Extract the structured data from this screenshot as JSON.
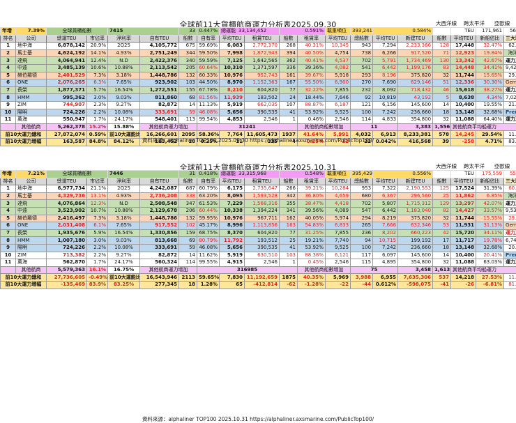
{
  "tables": [
    {
      "title": "全球前11大貨櫃航商運力分析表2025.09.30",
      "summary": {
        "year_label": "年增",
        "year_value": "7.39%",
        "ship_label": "全球貨櫃船數",
        "ship_value": "7415",
        "ship_inc": "33",
        "ship_inc_pct": "0.447%",
        "capacity_label": "總運能",
        "capacity_value": "33,134,452",
        "capacity_pct": "0.591%",
        "tonnage_label": "載重噸位",
        "tonnage_value": "393,241,254",
        "tonnage_pct": "0.584%",
        "teu_label": "TEU"
      },
      "routes": {
        "headers": [
          "大西洋線",
          "跨太平洋",
          "亞歐線"
        ],
        "values": [
          "171,961",
          "565,839",
          "511,552"
        ]
      },
      "headers": [
        "排名",
        "公司",
        "總運TEU",
        "市佔率",
        "淨利率",
        "自有TEU",
        "船數",
        "自有率",
        "平均TEU",
        "租賃TEU",
        "船數",
        "租賃率",
        "平均TEU",
        "總船數",
        "平均TEU",
        "新建TEU",
        "船數",
        "平均TEU",
        "新船佔比"
      ],
      "rows": [
        {
          "cells": [
            "1",
            "地中海",
            "6,878,142",
            "20.9%",
            "2Q25",
            "4,105,772",
            "675",
            "59.69%",
            "6,083",
            "2,772,370",
            "268",
            "40.31%",
            "10,345",
            "943",
            "7,294",
            "2,233,366",
            "128",
            "17,448",
            "32.47%"
          ],
          "bg": "bg-white"
        },
        {
          "cells": [
            "2",
            "馬士基",
            "4,624,192",
            "14.1%",
            "4.93%",
            "2,751,249",
            "344",
            "59.50%",
            "7,998",
            "1,872,943",
            "394",
            "40.50%",
            "4,754",
            "738",
            "6,266",
            "917,520",
            "71",
            "12,923",
            "19.84%"
          ],
          "bg": "bg-orange"
        },
        {
          "cells": [
            "3",
            "達飛",
            "4,064,941",
            "12.4%",
            "N.D",
            "2,422,376",
            "340",
            "59.59%",
            "7,125",
            "1,642,565",
            "362",
            "40.41%",
            "4,537",
            "702",
            "5,791",
            "1,734,469",
            "130",
            "13,342",
            "42.67%"
          ],
          "bg": "bg-green"
        },
        {
          "cells": [
            "4",
            "中遠",
            "3,485,139",
            "10.6%",
            "10.88%",
            "2,113,542",
            "205",
            "60.64%",
            "10,310",
            "1,371,597",
            "336",
            "39.36%",
            "4,082",
            "541",
            "6,442",
            "1,199,176",
            "83",
            "14,448",
            "34.41%"
          ],
          "bg": "bg-green"
        },
        {
          "cells": [
            "5",
            "赫伯羅德",
            "2,401,529",
            "7.3%",
            "3.18%",
            "1,448,786",
            "132",
            "60.33%",
            "10,976",
            "952,743",
            "161",
            "39.67%",
            "5,918",
            "293",
            "8,196",
            "375,820",
            "32",
            "11,744",
            "15.65%"
          ],
          "bg": "bg-orange"
        },
        {
          "cells": [
            "6",
            "ONE",
            "2,076,265",
            "6.3%",
            "7.65%",
            "923,902",
            "103",
            "44.50%",
            "8,970",
            "1,152,363",
            "167",
            "55.50%",
            "6,900",
            "270",
            "7,690",
            "629,146",
            "51",
            "12,336",
            "30.30%"
          ],
          "bg": "bg-blue"
        },
        {
          "cells": [
            "7",
            "長榮",
            "1,877,371",
            "5.7%",
            "16.54%",
            "1,272,551",
            "155",
            "67.78%",
            "8,210",
            "604,820",
            "77",
            "32.22%",
            "7,855",
            "232",
            "8,092",
            "718,432",
            "46",
            "15,618",
            "38.27%"
          ],
          "bg": "bg-green"
        },
        {
          "cells": [
            "8",
            "HMM",
            "995,362",
            "3.0%",
            "9.03%",
            "811,860",
            "68",
            "81.56%",
            "11,939",
            "183,502",
            "24",
            "18.44%",
            "7,646",
            "92",
            "10,819",
            "43,192",
            "5",
            "8,638",
            "4.34%"
          ],
          "bg": "bg-blue"
        },
        {
          "cells": [
            "9",
            "ZIM",
            "744,907",
            "2.3%",
            "9.27%",
            "82,872",
            "14",
            "11.13%",
            "5,919",
            "662,035",
            "107",
            "88.87%",
            "6,187",
            "121",
            "6,156",
            "145,600",
            "14",
            "10,400",
            "19.55%"
          ],
          "bg": "bg-white"
        },
        {
          "cells": [
            "10",
            "陽明",
            "724,226",
            "2.2%",
            "10.08%",
            "333,691",
            "59",
            "46.08%",
            "5,656",
            "390,535",
            "41",
            "53.92%",
            "9,525",
            "100",
            "7,242",
            "236,660",
            "18",
            "13,148",
            "32.68%"
          ],
          "bg": "bg-blue"
        },
        {
          "cells": [
            "11",
            "萬海",
            "550,947",
            "1.7%",
            "24.17%",
            "548,401",
            "113",
            "99.54%",
            "4,853",
            "2,546",
            "1",
            "0.46%",
            "2,546",
            "114",
            "4,833",
            "354,800",
            "32",
            "11,088",
            "64.40%"
          ],
          "bg": "bg-white"
        }
      ],
      "others": {
        "label": "其他航商",
        "teu": "5,262,378",
        "share": "15.2%",
        "margin": "15.88%",
        "own_label": "其他航商運力增加",
        "own_inc": "31241",
        "lease_label": "其他航商船數增加",
        "ship_inc": "11",
        "total_ships": "3,383",
        "avg_teu": "1,556",
        "avg_label": "其他航商平均船運力"
      },
      "top10_total": {
        "label": "前10大運力總和",
        "teu": "27,872,074",
        "share": "0.59%",
        "ratio_label": "前10大運能比",
        "own": "16,266,601",
        "own_ships": "2095",
        "own_rate": "58.36%",
        "own_avg": "7,764",
        "lease": "11,605,473",
        "lease_ships": "1937",
        "lease_rate": "41.64%",
        "lease_avg": "5,991",
        "total_ships": "4,032",
        "avg": "6,913",
        "new": "8,233,381",
        "new_ships": "578",
        "new_avg": "14,245",
        "new_ratio": "29.54%"
      },
      "top10_inc": {
        "label": "前10大運力增幅",
        "teu": "163,587",
        "share": "84.8%",
        "ratio": "84.12%",
        "own": "163,452",
        "own_ships": "18",
        "own_rate": "0.25%",
        "own_avg": "11",
        "lease": "135",
        "lease_ships": "4",
        "lease_rate": "-0.25%",
        "lease_avg": "-12",
        "total_ships": "22",
        "avg": "0.042%",
        "new": "416,568",
        "new_ships": "39",
        "new_avg": "-258",
        "new_ratio": "4.71%"
      },
      "alliances": [
        "三大聯盟佔比",
        "62.30%",
        "海洋聯盟",
        "運力及佔比",
        "9,427,451",
        "29.30%",
        "Gemini 聯盟",
        "運力及佔比",
        "7,025,721",
        "21.40%",
        "Premier 聯盟",
        "運力及佔比",
        "3,816,534",
        "11.60%",
        "83.20%"
      ],
      "source": "資料來源：alphaliner TOP100  2025.09.30   https://alphaliner.axsmarine.com/PublicTop100/"
    },
    {
      "title": "全球前11大貨櫃航商運力分析表2025.10.31",
      "summary": {
        "year_label": "年增",
        "year_value": "7.21%",
        "ship_label": "全球貨櫃船數",
        "ship_value": "7446",
        "ship_inc": "31",
        "ship_inc_pct": "0.418%",
        "capacity_label": "總運能",
        "capacity_value": "33,315,968",
        "capacity_pct": "0.548%",
        "tonnage_label": "載重噸位",
        "tonnage_value": "395,429,214",
        "tonnage_pct": "0.556%",
        "teu_label": "TEU"
      },
      "routes": {
        "headers": [
          "大西洋線",
          "跨太平洋",
          "亞歐線"
        ],
        "values": [
          "175,559",
          "555,383",
          "507,015"
        ]
      },
      "headers": [
        "排名",
        "公司",
        "總運TEU",
        "市佔率",
        "淨利率",
        "自有TEU",
        "船數",
        "自有率",
        "平均TEU",
        "租賃TEU",
        "船數",
        "租賃率",
        "平均TEU",
        "總船數",
        "平均TEU",
        "新建TEU",
        "船數",
        "平均TEU",
        "新船佔比"
      ],
      "rows": [
        {
          "cells": [
            "1",
            "地中海",
            "6,977,734",
            "21.1%",
            "2Q25",
            "4,242,087",
            "687",
            "60.79%",
            "6,175",
            "2,735,647",
            "266",
            "39.21%",
            "10,284",
            "953",
            "7,322",
            "2,190,553",
            "125",
            "17,524",
            "31.39%"
          ],
          "bg": "bg-white"
        },
        {
          "cells": [
            "2",
            "馬士基",
            "4,329,736",
            "13.1%",
            "4.93%",
            "2,736,208",
            "338",
            "63.20%",
            "8,095",
            "1,593,528",
            "342",
            "36.80%",
            "4,659",
            "680",
            "6,367",
            "296,560",
            "25",
            "11,862",
            "6.85%"
          ],
          "bg": "bg-orange"
        },
        {
          "cells": [
            "3",
            "達飛",
            "4,076,864",
            "12.3%",
            "N.D",
            "2,508,548",
            "347",
            "61.53%",
            "7,229",
            "1,568,316",
            "355",
            "38.47%",
            "4,418",
            "702",
            "5,807",
            "1,715,312",
            "129",
            "13,297",
            "42.07%"
          ],
          "bg": "bg-green"
        },
        {
          "cells": [
            "4",
            "中遠",
            "3,523,902",
            "10.7%",
            "10.88%",
            "2,129,678",
            "206",
            "60.44%",
            "10,338",
            "1,394,224",
            "341",
            "39.56%",
            "4,089",
            "547",
            "6,442",
            "1,183,040",
            "82",
            "14,427",
            "33.57%"
          ],
          "bg": "bg-green"
        },
        {
          "cells": [
            "5",
            "赫伯羅德",
            "2,416,497",
            "7.3%",
            "3.18%",
            "1,448,786",
            "132",
            "59.95%",
            "10,976",
            "967,711",
            "162",
            "40.05%",
            "5,974",
            "294",
            "8,219",
            "375,820",
            "32",
            "11,744",
            "15.55%"
          ],
          "bg": "bg-orange"
        },
        {
          "cells": [
            "6",
            "ONE",
            "2,031,408",
            "6.1%",
            "7.65%",
            "917,552",
            "102",
            "45.17%",
            "8,996",
            "1,113,856",
            "163",
            "54.83%",
            "6,833",
            "265",
            "7,666",
            "632,346",
            "53",
            "11,931",
            "31.13%"
          ],
          "bg": "bg-blue"
        },
        {
          "cells": [
            "7",
            "長榮",
            "1,935,676",
            "5.9%",
            "16.54%",
            "1,330,856",
            "159",
            "68.75%",
            "8,370",
            "604,820",
            "77",
            "31.25%",
            "7,855",
            "236",
            "8,202",
            "660,223",
            "42",
            "15,720",
            "34.11%"
          ],
          "bg": "bg-green"
        },
        {
          "cells": [
            "8",
            "HMM",
            "1,007,180",
            "3.0%",
            "9.03%",
            "813,668",
            "69",
            "80.79%",
            "11,792",
            "193,512",
            "25",
            "19.21%",
            "7,740",
            "94",
            "10,715",
            "199,192",
            "17",
            "11,717",
            "19.78%"
          ],
          "bg": "bg-blue"
        },
        {
          "cells": [
            "9",
            "陽明",
            "724,226",
            "2.2%",
            "10.08%",
            "333,691",
            "59",
            "46.08%",
            "5,656",
            "390,535",
            "41",
            "53.92%",
            "9,525",
            "100",
            "7,242",
            "236,660",
            "18",
            "13,148",
            "32.68%"
          ],
          "bg": "bg-blue"
        },
        {
          "cells": [
            "10",
            "ZIM",
            "713,382",
            "2.2%",
            "9.27%",
            "82,872",
            "14",
            "11.62%",
            "5,919",
            "630,510",
            "103",
            "88.38%",
            "6,121",
            "117",
            "6,097",
            "145,600",
            "14",
            "10,400",
            "20.41%"
          ],
          "bg": "bg-white"
        },
        {
          "cells": [
            "11",
            "萬海",
            "562,870",
            "1.7%",
            "24.17%",
            "560,324",
            "114",
            "99.55%",
            "4,915",
            "2,546",
            "1",
            "0.45%",
            "2,546",
            "115",
            "4,895",
            "354,800",
            "32",
            "11,088",
            "63.03%"
          ],
          "bg": "bg-white"
        }
      ],
      "others": {
        "label": "其他航商",
        "teu": "5,579,363",
        "share": "16.1%",
        "margin": "16.75%",
        "own_label": "其他航商運力增加",
        "own_inc": "316985",
        "lease_label": "其他航商船數增加",
        "ship_inc": "75",
        "total_ships": "3,458",
        "avg_teu": "1,613",
        "avg_label": "其他航商平均船運力"
      },
      "top10_total": {
        "label": "前10大運力總和",
        "teu": "27,736,605",
        "share": "-0.49%",
        "ratio_label": "前10大運能比",
        "own": "16,543,946",
        "own_ships": "2113",
        "own_rate": "59.65%",
        "own_avg": "7,830",
        "lease": "11,192,659",
        "lease_ships": "1875",
        "lease_rate": "40.35%",
        "lease_avg": "5,969",
        "total_ships": "3,988",
        "avg": "6,955",
        "new": "7,635,306",
        "new_ships": "537",
        "new_avg": "14,218",
        "new_ratio": "27.53%"
      },
      "top10_inc": {
        "label": "前10大運力增幅",
        "teu": "-135,469",
        "share": "83.9%",
        "ratio": "83.25%",
        "own": "277,345",
        "own_ships": "18",
        "own_rate": "1.28%",
        "own_avg": "65",
        "lease": "-412,814",
        "lease_ships": "-62",
        "lease_rate": "-1.28%",
        "lease_avg": "-22",
        "total_ships": "-44",
        "avg": "0.612%",
        "new": "-598,075",
        "new_ships": "-41",
        "new_avg": "-26",
        "new_ratio": "-6.81%"
      },
      "alliances": [
        "三大聯盟佔比",
        "60.80%",
        "海洋聯盟",
        "運力及佔比",
        "9,536,442",
        "29.10%",
        "Gemini 聯盟",
        "運力及佔比",
        "6,746,233",
        "20.40%",
        "Premier 聯盟",
        "運力及佔比",
        "3,751,970",
        "11.30%",
        "81.90%"
      ],
      "source": "資料來源：alphaliner TOP100  2025.10.31   https://alphaliner.axsmarine.com/PublicTop100/"
    }
  ]
}
